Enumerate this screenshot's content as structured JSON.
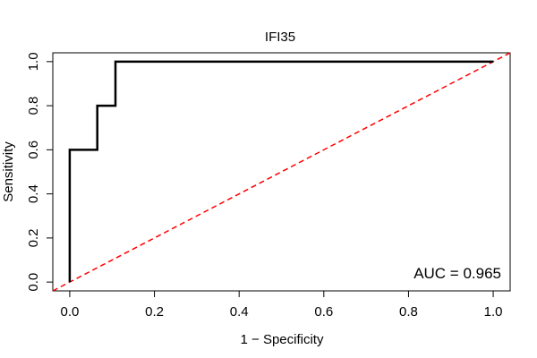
{
  "chart_data": {
    "type": "line",
    "title": "IFI35",
    "xlabel": "1 − Specificity",
    "ylabel": "Sensitivity",
    "xlim": [
      -0.04,
      1.04
    ],
    "ylim": [
      -0.04,
      1.04
    ],
    "x_ticks": [
      "0.0",
      "0.2",
      "0.4",
      "0.6",
      "0.8",
      "1.0"
    ],
    "y_ticks": [
      "0.0",
      "0.2",
      "0.4",
      "0.6",
      "0.8",
      "1.0"
    ],
    "grid": false,
    "series": [
      {
        "style": "solid",
        "color": "#000000",
        "points": [
          [
            0,
            0
          ],
          [
            0,
            0.6
          ],
          [
            0.065,
            0.6
          ],
          [
            0.065,
            0.8
          ],
          [
            0.108,
            0.8
          ],
          [
            0.108,
            1.0
          ],
          [
            1.0,
            1.0
          ]
        ]
      },
      {
        "style": "dashed",
        "color": "#ff0000",
        "points": [
          [
            -0.04,
            -0.04
          ],
          [
            1.04,
            1.04
          ]
        ]
      }
    ],
    "annotation": "AUC = 0.965"
  }
}
